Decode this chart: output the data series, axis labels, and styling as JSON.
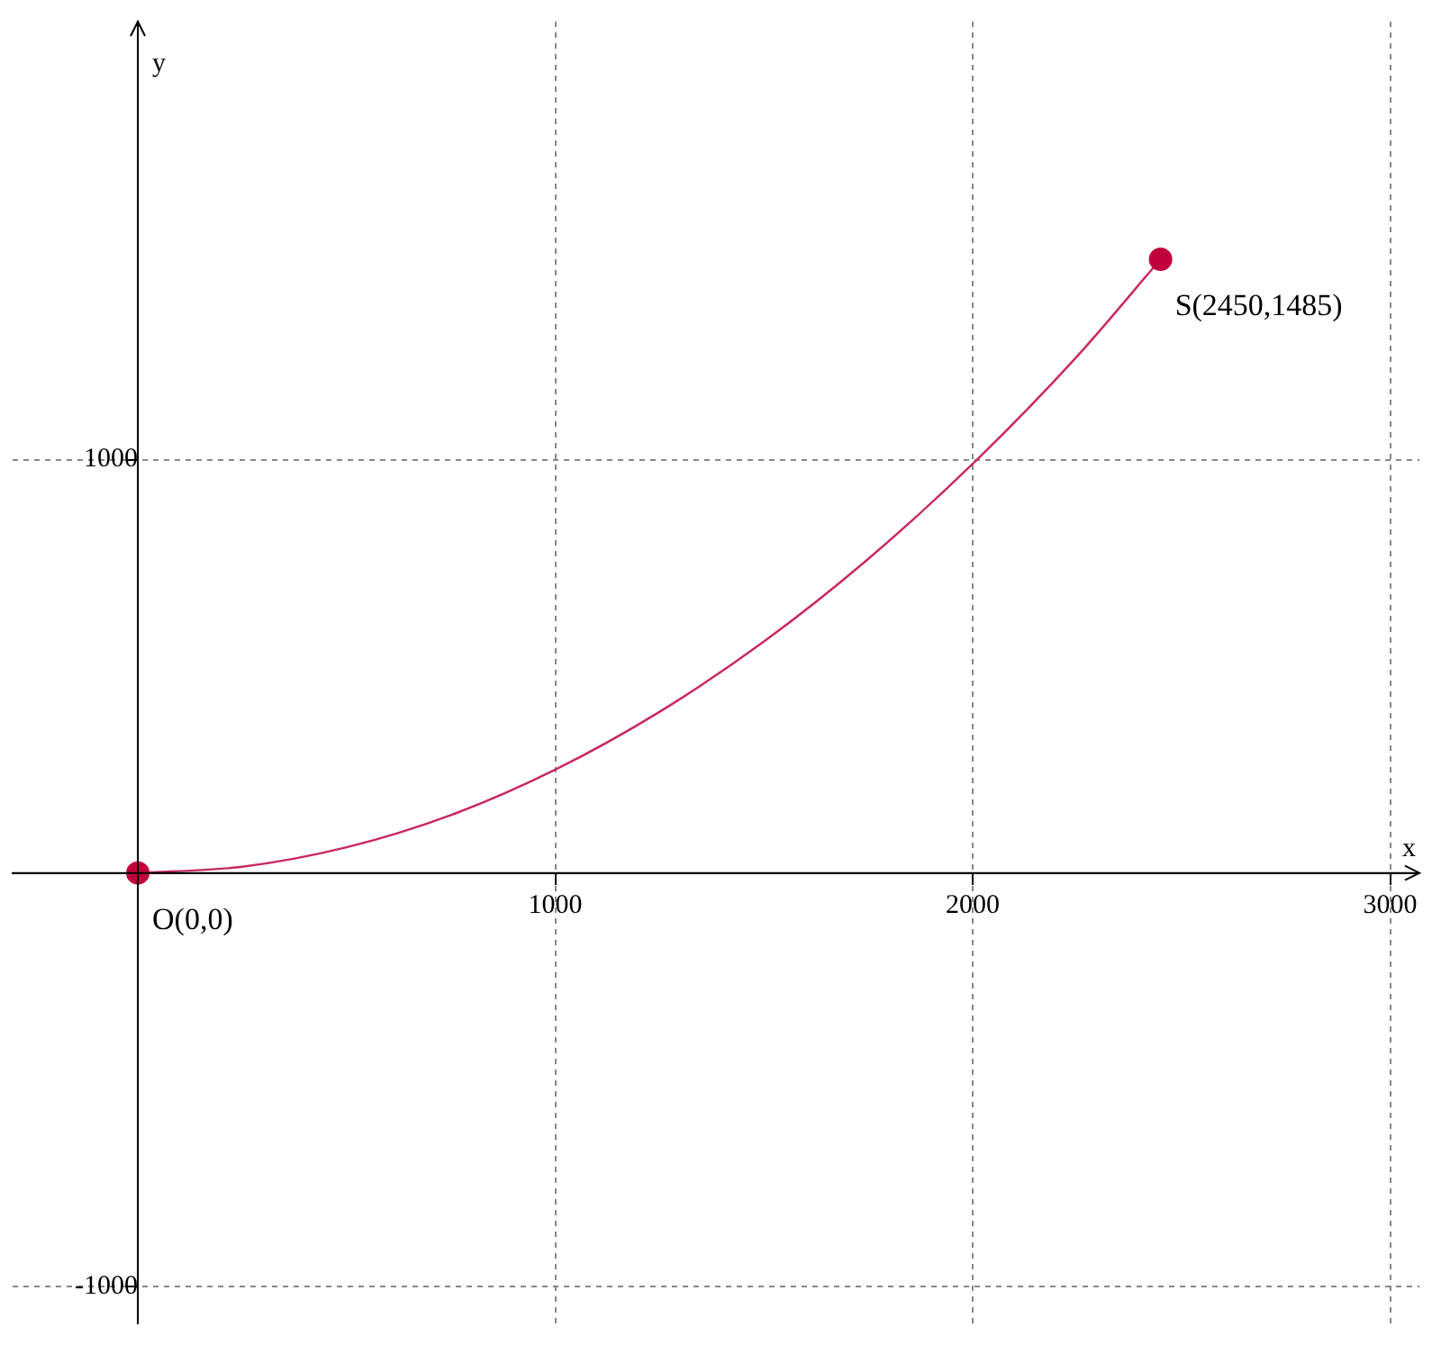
{
  "chart_data": {
    "type": "line",
    "xlabel": "x",
    "ylabel": "y",
    "xlim": [
      -300,
      3070
    ],
    "ylim": [
      -1090,
      2060
    ],
    "xticks": [
      1000,
      2000,
      3000
    ],
    "yticks": [
      -1000,
      1000
    ],
    "grid": true,
    "legend": false,
    "series": [
      {
        "type": "line",
        "color": "#c8285a",
        "marker": "none",
        "x": [
          0,
          250,
          500,
          750,
          1000,
          1250,
          1500,
          1750,
          2000,
          2250,
          2450
        ],
        "values": [
          0,
          15,
          62,
          140,
          250,
          390,
          560,
          760,
          990,
          1250,
          1485
        ]
      },
      {
        "type": "scatter",
        "color": "#c0003c",
        "marker": "circle",
        "x": [
          0,
          2450
        ],
        "values": [
          0,
          1485
        ]
      }
    ],
    "annotations": [
      {
        "text": "O(0,0)",
        "x": 0,
        "y": 0
      },
      {
        "text": "S(2450,1485)",
        "x": 2450,
        "y": 1485
      }
    ]
  }
}
